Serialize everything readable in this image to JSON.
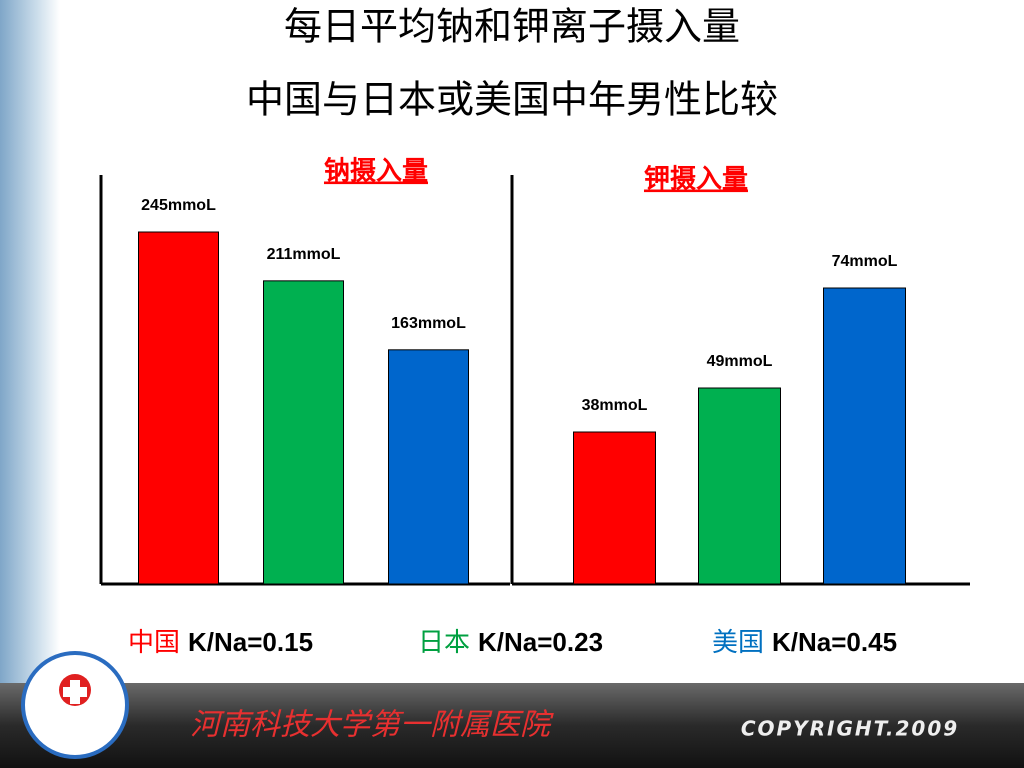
{
  "title": [
    "每日平均钠和钾离子摄入量",
    "中国与日本或美国中年男性比较"
  ],
  "chart_data": [
    {
      "type": "bar",
      "title": "钠摄入量",
      "values": [
        245,
        211,
        163
      ],
      "value_labels": [
        "245mmoL",
        "211mmoL",
        "163mmoL"
      ],
      "colors": [
        "#ff0000",
        "#00b050",
        "#0066cc"
      ]
    },
    {
      "type": "bar",
      "title": "钾摄入量",
      "values": [
        38,
        49,
        74
      ],
      "value_labels": [
        "38mmoL",
        "49mmoL",
        "74mmoL"
      ],
      "colors": [
        "#ff0000",
        "#00b050",
        "#0066cc"
      ]
    }
  ],
  "ratios": [
    {
      "country": "中国",
      "text": "K/Na=0.15",
      "color": "#ff0000"
    },
    {
      "country": "日本",
      "text": "K/Na=0.23",
      "color": "#00a040"
    },
    {
      "country": "美国",
      "text": "K/Na=0.45",
      "color": "#0070c0"
    }
  ],
  "footer": {
    "institution": "河南科技大学第一附属医院",
    "copyright": "COPYRIGHT.2009"
  }
}
